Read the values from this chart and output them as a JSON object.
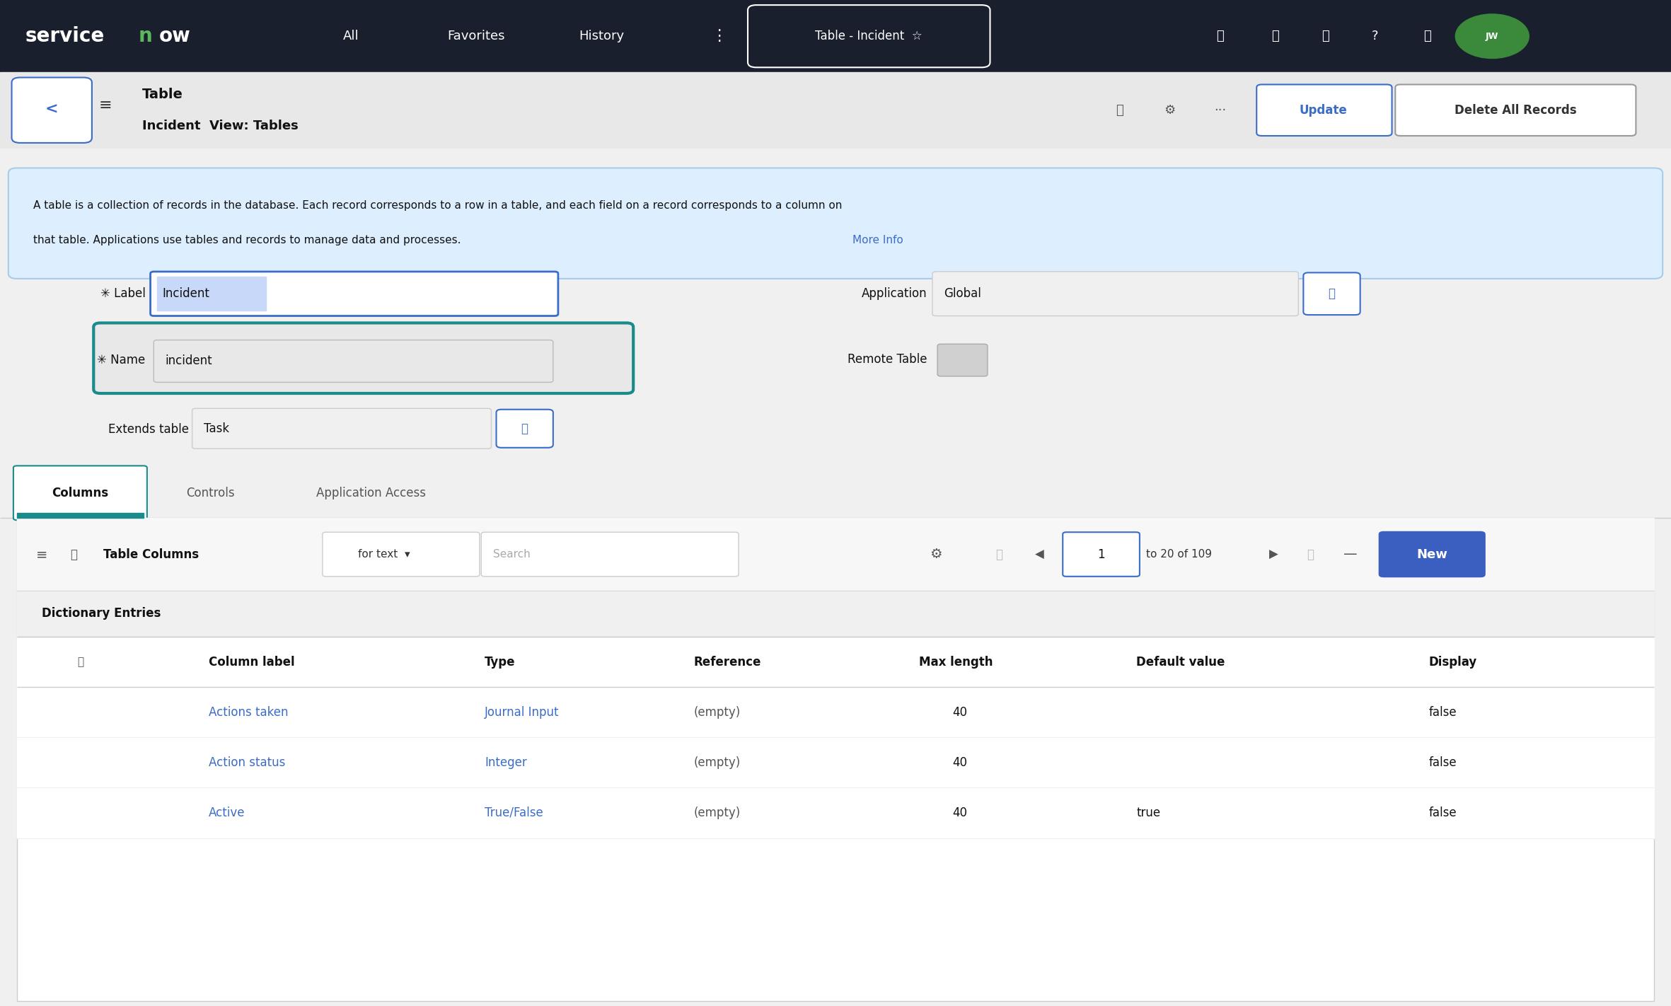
{
  "nav_bg": "#1a1f2e",
  "nav_text_color": "#ffffff",
  "nav_items": [
    "All",
    "Favorites",
    "History"
  ],
  "nav_title": "Table - Incident",
  "page_bg": "#f0f0f0",
  "header_bg": "#e8e8e8",
  "header_title": "Table",
  "header_subtitle": "Incident  View: Tables",
  "info_box_bg": "#ddeeff",
  "info_box_border": "#a8cce8",
  "info_text_line1": "A table is a collection of records in the database. Each record corresponds to a row in a table, and each field on a record corresponds to a column on",
  "info_text_line2": "that table. Applications use tables and records to manage data and processes.",
  "info_link": "More Info",
  "label_field": "Incident",
  "name_field": "incident",
  "extends_field": "Task",
  "application_field": "Global",
  "tab_columns": "Columns",
  "tab_controls": "Controls",
  "tab_app_access": "Application Access",
  "table_title": "Table Columns",
  "filter_text": "for text",
  "search_placeholder": "Search",
  "dict_entries_label": "Dictionary Entries",
  "col_headers": [
    "Column label",
    "Type",
    "Reference",
    "Max length",
    "Default value",
    "Display"
  ],
  "rows": [
    [
      "Actions taken",
      "Journal Input",
      "(empty)",
      "40",
      "",
      "false"
    ],
    [
      "Action status",
      "Integer",
      "(empty)",
      "40",
      "",
      "false"
    ],
    [
      "Active",
      "True/False",
      "(empty)",
      "40",
      "true",
      "false"
    ]
  ],
  "link_color": "#3b6cc7",
  "teal_color": "#1a8a8a",
  "green_color": "#5cb85c",
  "new_button_bg": "#3b5fc0",
  "new_button_text": "#ffffff"
}
